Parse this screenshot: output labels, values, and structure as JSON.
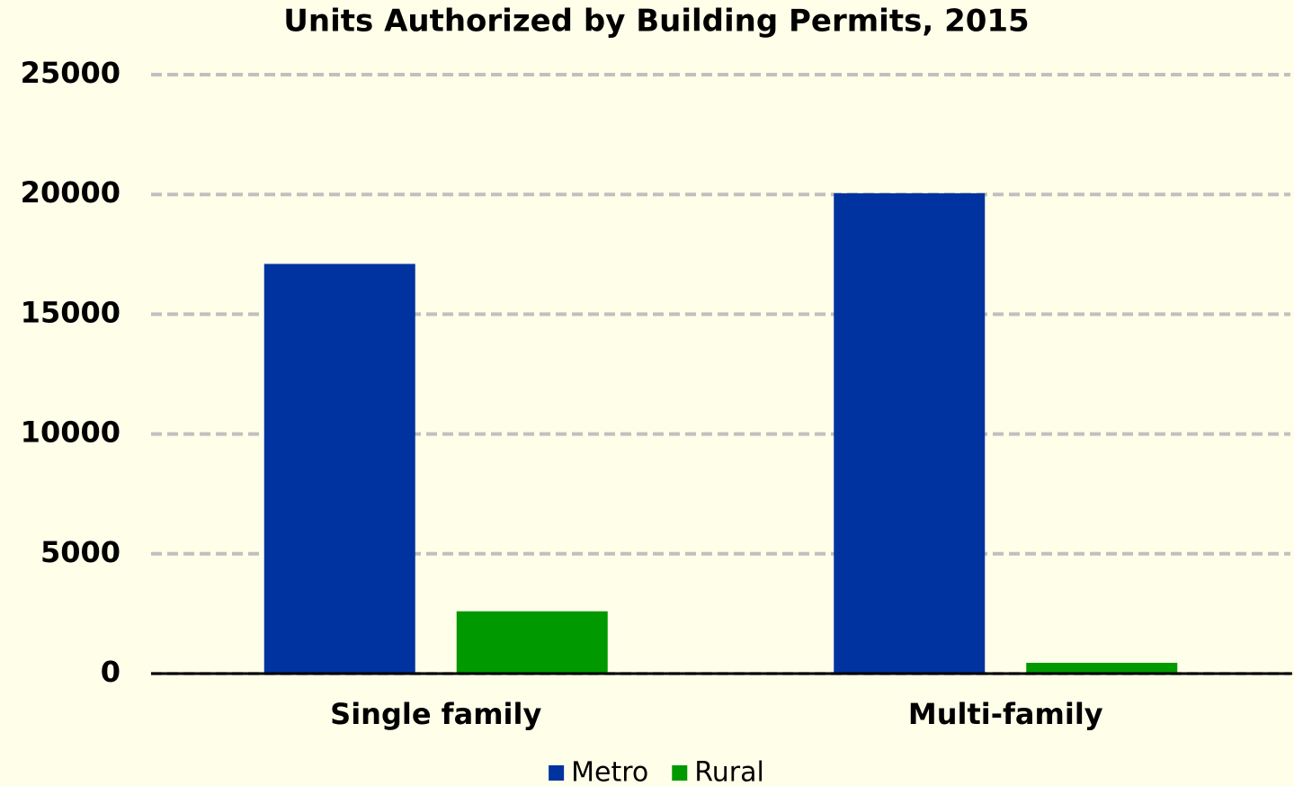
{
  "chart_data": {
    "type": "bar",
    "title": "Units Authorized by Building Permits, 2015",
    "categories": [
      "Single family",
      "Multi-family"
    ],
    "series": [
      {
        "name": "Metro",
        "color": "#0033a0",
        "values": [
          17100,
          20050
        ]
      },
      {
        "name": "Rural",
        "color": "#009900",
        "values": [
          2600,
          450
        ]
      }
    ],
    "ylim": [
      0,
      25000
    ],
    "yticks": [
      0,
      5000,
      10000,
      15000,
      20000,
      25000
    ],
    "grid": true,
    "legend": "bottom"
  }
}
